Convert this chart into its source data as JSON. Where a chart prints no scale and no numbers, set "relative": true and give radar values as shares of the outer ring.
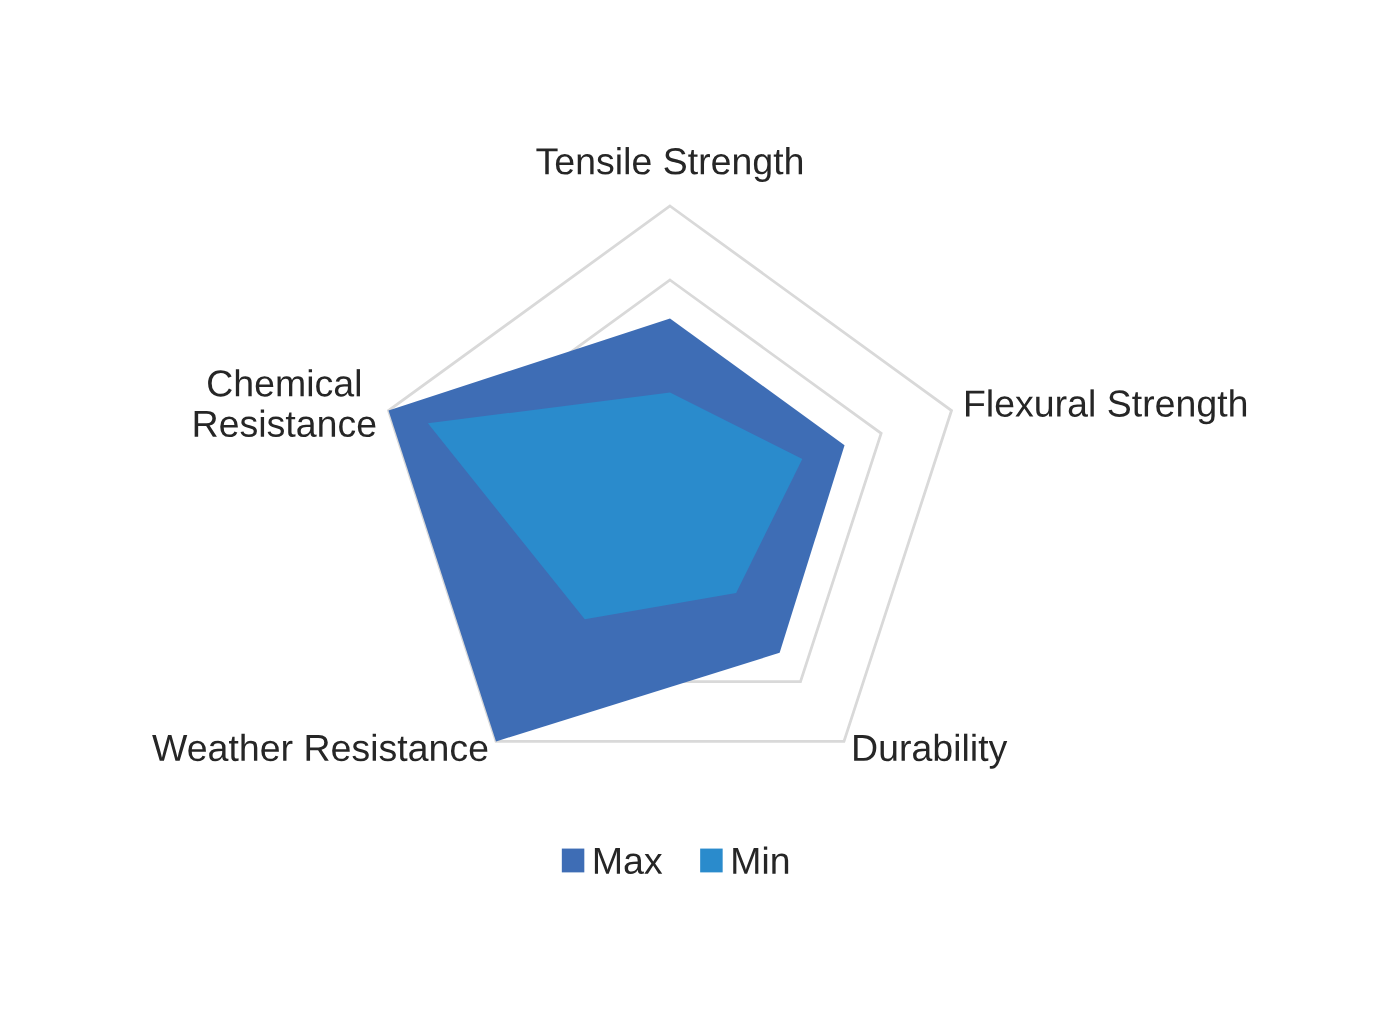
{
  "chart_data": {
    "type": "radar",
    "relative": true,
    "categories": [
      "Tensile Strength",
      "Flexural Strength",
      "Durability",
      "Weather Resistance",
      "Chemical\nResistance"
    ],
    "series": [
      {
        "name": "Max",
        "color": "#3e6db5",
        "values": [
          0.62,
          0.62,
          0.63,
          1,
          1
        ]
      },
      {
        "name": "Min",
        "color": "#2a8bcc",
        "values": [
          0.37,
          0.47,
          0.38,
          0.49,
          0.86
        ]
      }
    ],
    "grid": true,
    "legend": "bottom"
  }
}
